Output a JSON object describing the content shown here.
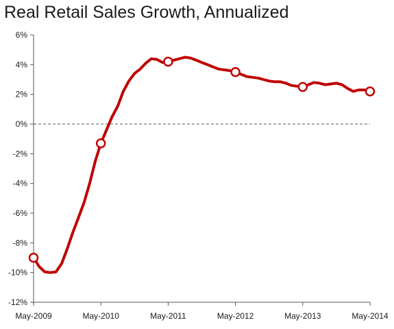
{
  "chart_data": {
    "type": "line",
    "title": "Real Retail Sales Growth, Annualized",
    "xlabel": "",
    "ylabel": "",
    "ylim": [
      -12,
      6
    ],
    "yticks": [
      6,
      4,
      2,
      0,
      -2,
      -4,
      -6,
      -8,
      -10,
      -12
    ],
    "ytick_labels": [
      "6%",
      "4%",
      "2%",
      "0%",
      "-2%",
      "-4%",
      "-6%",
      "-8%",
      "-10%",
      "-12%"
    ],
    "xlim": [
      0,
      60
    ],
    "xticks": [
      0,
      12,
      24,
      36,
      48,
      60
    ],
    "xtick_labels": [
      "May-2009",
      "May-2010",
      "May-2011",
      "May-2012",
      "May-2013",
      "May-2014"
    ],
    "zero_line": "dashed",
    "grid": false,
    "line_color": "#c00000",
    "series": [
      {
        "values": [
          {
            "x": 0,
            "y": -9.0
          },
          {
            "x": 1,
            "y": -9.6
          },
          {
            "x": 2,
            "y": -9.95
          },
          {
            "x": 3,
            "y": -10.0
          },
          {
            "x": 4,
            "y": -9.95
          },
          {
            "x": 5,
            "y": -9.4
          },
          {
            "x": 6,
            "y": -8.4
          },
          {
            "x": 7,
            "y": -7.3
          },
          {
            "x": 8,
            "y": -6.3
          },
          {
            "x": 9,
            "y": -5.3
          },
          {
            "x": 10,
            "y": -4.0
          },
          {
            "x": 11,
            "y": -2.5
          },
          {
            "x": 12,
            "y": -1.3
          },
          {
            "x": 13,
            "y": -0.4
          },
          {
            "x": 14,
            "y": 0.5
          },
          {
            "x": 15,
            "y": 1.2
          },
          {
            "x": 16,
            "y": 2.2
          },
          {
            "x": 17,
            "y": 2.9
          },
          {
            "x": 18,
            "y": 3.4
          },
          {
            "x": 19,
            "y": 3.7
          },
          {
            "x": 20,
            "y": 4.1
          },
          {
            "x": 21,
            "y": 4.4
          },
          {
            "x": 22,
            "y": 4.35
          },
          {
            "x": 23,
            "y": 4.15
          },
          {
            "x": 24,
            "y": 4.2
          },
          {
            "x": 25,
            "y": 4.3
          },
          {
            "x": 26,
            "y": 4.4
          },
          {
            "x": 27,
            "y": 4.5
          },
          {
            "x": 28,
            "y": 4.45
          },
          {
            "x": 29,
            "y": 4.3
          },
          {
            "x": 30,
            "y": 4.15
          },
          {
            "x": 31,
            "y": 4.0
          },
          {
            "x": 32,
            "y": 3.85
          },
          {
            "x": 33,
            "y": 3.7
          },
          {
            "x": 34,
            "y": 3.65
          },
          {
            "x": 35,
            "y": 3.6
          },
          {
            "x": 36,
            "y": 3.5
          },
          {
            "x": 37,
            "y": 3.35
          },
          {
            "x": 38,
            "y": 3.2
          },
          {
            "x": 39,
            "y": 3.15
          },
          {
            "x": 40,
            "y": 3.1
          },
          {
            "x": 41,
            "y": 3.0
          },
          {
            "x": 42,
            "y": 2.9
          },
          {
            "x": 43,
            "y": 2.85
          },
          {
            "x": 44,
            "y": 2.85
          },
          {
            "x": 45,
            "y": 2.75
          },
          {
            "x": 46,
            "y": 2.6
          },
          {
            "x": 47,
            "y": 2.55
          },
          {
            "x": 48,
            "y": 2.5
          },
          {
            "x": 49,
            "y": 2.65
          },
          {
            "x": 50,
            "y": 2.8
          },
          {
            "x": 51,
            "y": 2.75
          },
          {
            "x": 52,
            "y": 2.65
          },
          {
            "x": 53,
            "y": 2.7
          },
          {
            "x": 54,
            "y": 2.75
          },
          {
            "x": 55,
            "y": 2.65
          },
          {
            "x": 56,
            "y": 2.4
          },
          {
            "x": 57,
            "y": 2.2
          },
          {
            "x": 58,
            "y": 2.3
          },
          {
            "x": 59,
            "y": 2.3
          },
          {
            "x": 60,
            "y": 2.2
          }
        ],
        "markers": [
          {
            "x": 0,
            "y": -9.0
          },
          {
            "x": 12,
            "y": -1.3
          },
          {
            "x": 24,
            "y": 4.2
          },
          {
            "x": 36,
            "y": 3.5
          },
          {
            "x": 48,
            "y": 2.5
          },
          {
            "x": 60,
            "y": 2.2
          }
        ]
      }
    ]
  }
}
